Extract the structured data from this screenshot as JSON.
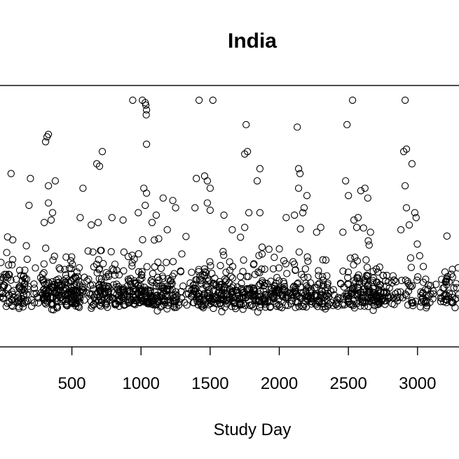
{
  "chart_data": {
    "type": "scatter",
    "title": "India",
    "xlabel": "Study Day",
    "ylabel": "",
    "xlim": [
      -20,
      3300
    ],
    "ylim": [
      0,
      100
    ],
    "x_ticks": [
      {
        "value": 500,
        "label": "500"
      },
      {
        "value": 1000,
        "label": "1000"
      },
      {
        "value": 1500,
        "label": "1500"
      },
      {
        "value": 2000,
        "label": "2000"
      },
      {
        "value": 2500,
        "label": "2500"
      },
      {
        "value": 3000,
        "label": "3000"
      }
    ],
    "marker": "open-circle",
    "point_color": "#000000",
    "grid": false,
    "legend": "none",
    "outliers": [
      [
        940,
        98
      ],
      [
        1010,
        98
      ],
      [
        1030,
        97
      ],
      [
        1035,
        96
      ],
      [
        1040,
        94
      ],
      [
        1038,
        92
      ],
      [
        1420,
        98
      ],
      [
        1520,
        98
      ],
      [
        2530,
        98
      ],
      [
        2910,
        98
      ],
      [
        330,
        84
      ],
      [
        320,
        83
      ],
      [
        310,
        81
      ],
      [
        1040,
        80
      ],
      [
        1760,
        88
      ],
      [
        1750,
        76
      ],
      [
        1770,
        77
      ],
      [
        2130,
        87
      ],
      [
        2490,
        88
      ],
      [
        2920,
        78
      ],
      [
        2900,
        77
      ],
      [
        2960,
        72
      ],
      [
        680,
        72
      ],
      [
        720,
        77
      ],
      [
        700,
        71
      ],
      [
        60,
        68
      ],
      [
        200,
        66
      ],
      [
        330,
        63
      ],
      [
        380,
        65
      ],
      [
        580,
        62
      ],
      [
        1400,
        66
      ],
      [
        1460,
        67
      ],
      [
        1480,
        65
      ],
      [
        1500,
        62
      ],
      [
        1020,
        62
      ],
      [
        1040,
        60
      ],
      [
        1160,
        58
      ],
      [
        1860,
        70
      ],
      [
        1840,
        65
      ],
      [
        2140,
        70
      ],
      [
        2150,
        68
      ],
      [
        2140,
        62
      ],
      [
        2200,
        59
      ],
      [
        2480,
        65
      ],
      [
        2500,
        59
      ],
      [
        2590,
        61
      ],
      [
        2620,
        62
      ],
      [
        2910,
        63
      ],
      [
        330,
        56
      ],
      [
        360,
        52
      ],
      [
        350,
        49
      ],
      [
        190,
        55
      ],
      [
        1230,
        57
      ],
      [
        1250,
        54
      ],
      [
        1030,
        55
      ],
      [
        1390,
        54
      ],
      [
        1480,
        56
      ],
      [
        1500,
        53
      ],
      [
        1600,
        51
      ],
      [
        1780,
        52
      ],
      [
        1860,
        52
      ],
      [
        2050,
        50
      ],
      [
        2110,
        51
      ],
      [
        2180,
        54
      ],
      [
        2170,
        52
      ],
      [
        2640,
        58
      ],
      [
        2920,
        54
      ],
      [
        2980,
        52
      ],
      [
        2990,
        50
      ],
      [
        2570,
        50
      ],
      [
        2540,
        49
      ],
      [
        300,
        48
      ],
      [
        640,
        47
      ],
      [
        790,
        50
      ],
      [
        870,
        49
      ],
      [
        690,
        48
      ],
      [
        1080,
        48
      ],
      [
        1190,
        45
      ],
      [
        1660,
        45
      ],
      [
        1750,
        46
      ],
      [
        2300,
        46
      ],
      [
        2270,
        44
      ],
      [
        2460,
        44
      ],
      [
        2560,
        46
      ],
      [
        2660,
        44
      ],
      [
        2880,
        45
      ],
      [
        2940,
        47
      ],
      [
        560,
        50
      ],
      [
        980,
        52
      ],
      [
        1110,
        51
      ]
    ],
    "series_clusters": [
      {
        "x_from": -20,
        "x_to": 190,
        "count": 85
      },
      {
        "x_from": 200,
        "x_to": 290,
        "count": 15
      },
      {
        "x_from": 290,
        "x_to": 560,
        "count": 175
      },
      {
        "x_from": 570,
        "x_to": 650,
        "count": 18
      },
      {
        "x_from": 650,
        "x_to": 960,
        "count": 150
      },
      {
        "x_from": 960,
        "x_to": 1260,
        "count": 160
      },
      {
        "x_from": 1260,
        "x_to": 1360,
        "count": 15
      },
      {
        "x_from": 1360,
        "x_to": 1660,
        "count": 150
      },
      {
        "x_from": 1660,
        "x_to": 1960,
        "count": 135
      },
      {
        "x_from": 1960,
        "x_to": 2360,
        "count": 170
      },
      {
        "x_from": 2360,
        "x_to": 2480,
        "count": 20
      },
      {
        "x_from": 2480,
        "x_to": 2790,
        "count": 160
      },
      {
        "x_from": 2790,
        "x_to": 3300,
        "count": 115
      }
    ]
  }
}
